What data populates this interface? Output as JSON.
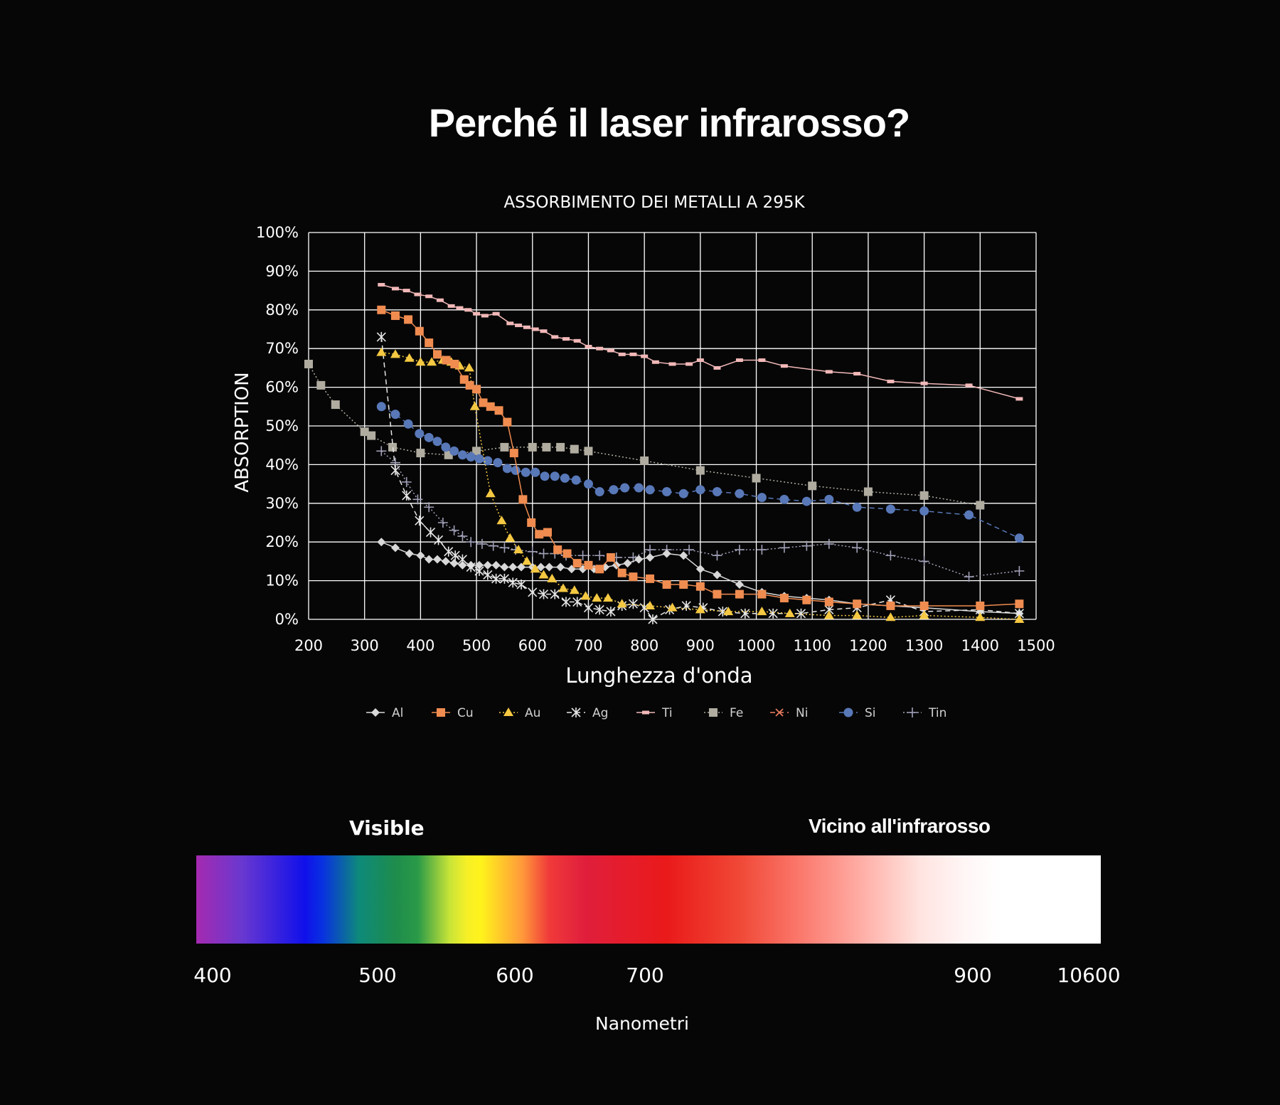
{
  "page_title": "Perché il laser infrarosso?",
  "colors": {
    "Al": "#d8d8d8",
    "Cu": "#f08c50",
    "Au": "#f5c842",
    "Ag": "#e6e6e6",
    "Ti": "#f2b8b8",
    "Fe": "#b0aca0",
    "Ni": "#f08060",
    "Si": "#5878b8",
    "Tin": "#a0a0b8",
    "background": "#060606",
    "grid": "#ffffff"
  },
  "chart_data": {
    "type": "line",
    "title": "ASSORBIMENTO DEI METALLI A 295K",
    "xlabel": "Lunghezza d'onda",
    "ylabel": "ABSORPTION",
    "xlim": [
      200,
      1500
    ],
    "ylim": [
      0,
      100
    ],
    "x_ticks": [
      "200",
      "300",
      "400",
      "500",
      "600",
      "700",
      "800",
      "900",
      "1000",
      "1100",
      "1200",
      "1300",
      "1400",
      "1500"
    ],
    "y_ticks": [
      "0%",
      "10%",
      "20%",
      "30%",
      "40%",
      "50%",
      "60%",
      "70%",
      "80%",
      "90%",
      "100%"
    ],
    "grid": true,
    "legend_position": "bottom",
    "series": [
      {
        "name": "Al",
        "marker": "diamond",
        "line": "solid",
        "points": [
          [
            330,
            20
          ],
          [
            355,
            18.5
          ],
          [
            380,
            17
          ],
          [
            400,
            16.5
          ],
          [
            415,
            15.5
          ],
          [
            430,
            15.5
          ],
          [
            445,
            15
          ],
          [
            460,
            14.5
          ],
          [
            475,
            14
          ],
          [
            490,
            14
          ],
          [
            505,
            14
          ],
          [
            520,
            14
          ],
          [
            535,
            14
          ],
          [
            550,
            13.5
          ],
          [
            565,
            13.5
          ],
          [
            580,
            13.5
          ],
          [
            600,
            13.5
          ],
          [
            615,
            13.5
          ],
          [
            630,
            13.5
          ],
          [
            650,
            13.5
          ],
          [
            670,
            13
          ],
          [
            690,
            13
          ],
          [
            710,
            13
          ],
          [
            730,
            13.5
          ],
          [
            750,
            14
          ],
          [
            770,
            14.5
          ],
          [
            790,
            15.5
          ],
          [
            810,
            16
          ],
          [
            840,
            17
          ],
          [
            870,
            16.5
          ],
          [
            900,
            13
          ],
          [
            930,
            11.5
          ],
          [
            970,
            9
          ],
          [
            1010,
            7
          ],
          [
            1050,
            6
          ],
          [
            1090,
            5.5
          ],
          [
            1130,
            5
          ],
          [
            1180,
            4
          ],
          [
            1240,
            3.5
          ],
          [
            1300,
            3
          ],
          [
            1400,
            2
          ],
          [
            1470,
            1.5
          ]
        ]
      },
      {
        "name": "Cu",
        "marker": "square",
        "line": "solid",
        "points": [
          [
            330,
            80
          ],
          [
            355,
            78.5
          ],
          [
            378,
            77.5
          ],
          [
            398,
            74.5
          ],
          [
            415,
            71.5
          ],
          [
            430,
            68.5
          ],
          [
            446,
            67
          ],
          [
            461,
            66
          ],
          [
            478,
            62
          ],
          [
            488,
            60.5
          ],
          [
            500,
            59.5
          ],
          [
            512,
            56
          ],
          [
            525,
            55
          ],
          [
            540,
            54
          ],
          [
            555,
            51
          ],
          [
            567,
            43
          ],
          [
            583,
            31
          ],
          [
            598,
            25
          ],
          [
            612,
            22
          ],
          [
            627,
            22.5
          ],
          [
            645,
            18
          ],
          [
            662,
            17
          ],
          [
            680,
            14.5
          ],
          [
            700,
            14
          ],
          [
            720,
            13
          ],
          [
            740,
            16
          ],
          [
            760,
            12
          ],
          [
            780,
            11
          ],
          [
            810,
            10.5
          ],
          [
            840,
            9
          ],
          [
            870,
            9
          ],
          [
            900,
            8.5
          ],
          [
            930,
            6.5
          ],
          [
            970,
            6.5
          ],
          [
            1010,
            6.5
          ],
          [
            1050,
            5.5
          ],
          [
            1090,
            5
          ],
          [
            1130,
            4.5
          ],
          [
            1180,
            4
          ],
          [
            1240,
            3.5
          ],
          [
            1300,
            3.5
          ],
          [
            1400,
            3.5
          ],
          [
            1470,
            4
          ]
        ]
      },
      {
        "name": "Au",
        "marker": "triangle",
        "line": "dotted",
        "points": [
          [
            330,
            69
          ],
          [
            355,
            68.5
          ],
          [
            380,
            67.5
          ],
          [
            400,
            66.5
          ],
          [
            420,
            66.5
          ],
          [
            440,
            67
          ],
          [
            455,
            66.5
          ],
          [
            470,
            65.5
          ],
          [
            487,
            65
          ],
          [
            497,
            55
          ],
          [
            525,
            32.5
          ],
          [
            545,
            25.5
          ],
          [
            560,
            21
          ],
          [
            575,
            18
          ],
          [
            590,
            15
          ],
          [
            605,
            13
          ],
          [
            620,
            11.5
          ],
          [
            635,
            10.5
          ],
          [
            655,
            8
          ],
          [
            675,
            7.5
          ],
          [
            695,
            6
          ],
          [
            715,
            5.5
          ],
          [
            735,
            5.5
          ],
          [
            760,
            4
          ],
          [
            810,
            3.5
          ],
          [
            850,
            3
          ],
          [
            900,
            2.5
          ],
          [
            950,
            2
          ],
          [
            1010,
            2
          ],
          [
            1060,
            1.5
          ],
          [
            1130,
            1
          ],
          [
            1180,
            1
          ],
          [
            1240,
            0.5
          ],
          [
            1300,
            1
          ],
          [
            1400,
            0.5
          ],
          [
            1470,
            0
          ]
        ]
      },
      {
        "name": "Ag",
        "marker": "asterisk",
        "line": "dashed",
        "points": [
          [
            330,
            73
          ],
          [
            355,
            38.5
          ],
          [
            375,
            32
          ],
          [
            398,
            25.5
          ],
          [
            418,
            22.5
          ],
          [
            432,
            20.5
          ],
          [
            450,
            17.5
          ],
          [
            462,
            16.5
          ],
          [
            475,
            15.5
          ],
          [
            490,
            13.5
          ],
          [
            505,
            12.5
          ],
          [
            520,
            11.5
          ],
          [
            535,
            10.5
          ],
          [
            550,
            10.5
          ],
          [
            565,
            9.5
          ],
          [
            580,
            9
          ],
          [
            600,
            7
          ],
          [
            620,
            6.5
          ],
          [
            640,
            6.5
          ],
          [
            660,
            4.5
          ],
          [
            680,
            4.5
          ],
          [
            700,
            3
          ],
          [
            720,
            2.5
          ],
          [
            740,
            2
          ],
          [
            760,
            3.5
          ],
          [
            780,
            4
          ],
          [
            800,
            3
          ],
          [
            815,
            0
          ],
          [
            845,
            2.5
          ],
          [
            875,
            3.5
          ],
          [
            905,
            3
          ],
          [
            940,
            2
          ],
          [
            980,
            1.5
          ],
          [
            1030,
            1.5
          ],
          [
            1080,
            1.5
          ],
          [
            1130,
            2.5
          ],
          [
            1180,
            3
          ],
          [
            1240,
            5
          ],
          [
            1300,
            2
          ],
          [
            1400,
            2.5
          ],
          [
            1470,
            1.5
          ]
        ]
      },
      {
        "name": "Ti",
        "marker": "dash",
        "line": "solid",
        "points": [
          [
            330,
            86.5
          ],
          [
            355,
            85.5
          ],
          [
            375,
            85
          ],
          [
            395,
            84
          ],
          [
            415,
            83.5
          ],
          [
            435,
            82.5
          ],
          [
            455,
            81
          ],
          [
            470,
            80.5
          ],
          [
            485,
            80
          ],
          [
            500,
            79
          ],
          [
            515,
            78.5
          ],
          [
            535,
            79
          ],
          [
            560,
            76.5
          ],
          [
            575,
            76
          ],
          [
            590,
            75.5
          ],
          [
            605,
            75
          ],
          [
            620,
            74.5
          ],
          [
            640,
            73
          ],
          [
            660,
            72.5
          ],
          [
            680,
            72
          ],
          [
            700,
            70.5
          ],
          [
            720,
            70
          ],
          [
            740,
            69.5
          ],
          [
            760,
            68.5
          ],
          [
            780,
            68.5
          ],
          [
            800,
            68
          ],
          [
            820,
            66.5
          ],
          [
            850,
            66
          ],
          [
            880,
            66
          ],
          [
            900,
            67
          ],
          [
            930,
            65
          ],
          [
            970,
            67
          ],
          [
            1010,
            67
          ],
          [
            1050,
            65.5
          ],
          [
            1130,
            64
          ],
          [
            1180,
            63.5
          ],
          [
            1240,
            61.5
          ],
          [
            1300,
            61
          ],
          [
            1380,
            60.5
          ],
          [
            1470,
            57
          ]
        ]
      },
      {
        "name": "Fe",
        "marker": "square",
        "line": "dotted",
        "points": [
          [
            200,
            66
          ],
          [
            222,
            60.5
          ],
          [
            248,
            55.5
          ],
          [
            300,
            48.5
          ],
          [
            312,
            47.5
          ],
          [
            350,
            44.5
          ],
          [
            400,
            43
          ],
          [
            450,
            42.5
          ],
          [
            500,
            43.5
          ],
          [
            550,
            44.5
          ],
          [
            600,
            44.5
          ],
          [
            625,
            44.5
          ],
          [
            650,
            44.5
          ],
          [
            675,
            44
          ],
          [
            700,
            43.5
          ],
          [
            800,
            41
          ],
          [
            900,
            38.5
          ],
          [
            1000,
            36.5
          ],
          [
            1100,
            34.5
          ],
          [
            1200,
            33
          ],
          [
            1300,
            32
          ],
          [
            1400,
            29.5
          ]
        ]
      },
      {
        "name": "Ni",
        "marker": "x",
        "line": "dashed",
        "points": []
      },
      {
        "name": "Si",
        "marker": "circle",
        "line": "dashed",
        "points": [
          [
            330,
            55
          ],
          [
            355,
            53
          ],
          [
            378,
            50.5
          ],
          [
            398,
            48
          ],
          [
            415,
            47
          ],
          [
            430,
            46
          ],
          [
            445,
            44.5
          ],
          [
            460,
            43.5
          ],
          [
            475,
            42.5
          ],
          [
            490,
            42
          ],
          [
            505,
            41.5
          ],
          [
            520,
            41
          ],
          [
            538,
            40.5
          ],
          [
            555,
            39
          ],
          [
            570,
            38.5
          ],
          [
            588,
            38
          ],
          [
            605,
            38
          ],
          [
            622,
            37
          ],
          [
            640,
            37
          ],
          [
            658,
            36.5
          ],
          [
            678,
            36
          ],
          [
            700,
            35
          ],
          [
            720,
            33
          ],
          [
            745,
            33.5
          ],
          [
            765,
            34
          ],
          [
            790,
            34
          ],
          [
            810,
            33.5
          ],
          [
            840,
            33
          ],
          [
            870,
            32.5
          ],
          [
            900,
            33.5
          ],
          [
            930,
            33
          ],
          [
            970,
            32.5
          ],
          [
            1010,
            31.5
          ],
          [
            1050,
            31
          ],
          [
            1090,
            30.5
          ],
          [
            1130,
            31
          ],
          [
            1180,
            29
          ],
          [
            1240,
            28.5
          ],
          [
            1300,
            28
          ],
          [
            1380,
            27
          ],
          [
            1470,
            21
          ]
        ]
      },
      {
        "name": "Tin",
        "marker": "plus",
        "line": "dotted",
        "points": [
          [
            330,
            43.5
          ],
          [
            355,
            40.5
          ],
          [
            375,
            35.5
          ],
          [
            395,
            31
          ],
          [
            415,
            29
          ],
          [
            440,
            25
          ],
          [
            460,
            23
          ],
          [
            475,
            21.5
          ],
          [
            490,
            20
          ],
          [
            510,
            19.5
          ],
          [
            530,
            19
          ],
          [
            550,
            18.5
          ],
          [
            570,
            18
          ],
          [
            600,
            17.5
          ],
          [
            620,
            17
          ],
          [
            640,
            17
          ],
          [
            660,
            16.5
          ],
          [
            690,
            16.5
          ],
          [
            720,
            16.5
          ],
          [
            750,
            16
          ],
          [
            780,
            16
          ],
          [
            810,
            18
          ],
          [
            840,
            18
          ],
          [
            880,
            18
          ],
          [
            930,
            16.5
          ],
          [
            970,
            18
          ],
          [
            1010,
            18
          ],
          [
            1050,
            18.5
          ],
          [
            1090,
            19
          ],
          [
            1130,
            19.5
          ],
          [
            1180,
            18.5
          ],
          [
            1240,
            16.5
          ],
          [
            1300,
            15
          ],
          [
            1380,
            11
          ],
          [
            1470,
            12.5
          ]
        ]
      }
    ]
  },
  "spectrum": {
    "visible_label": "Visible",
    "nir_label": "Vicino all'infrarosso",
    "ticks": [
      "400",
      "500",
      "600",
      "700",
      "900",
      "10600"
    ],
    "unit_label": "Nanometri"
  }
}
